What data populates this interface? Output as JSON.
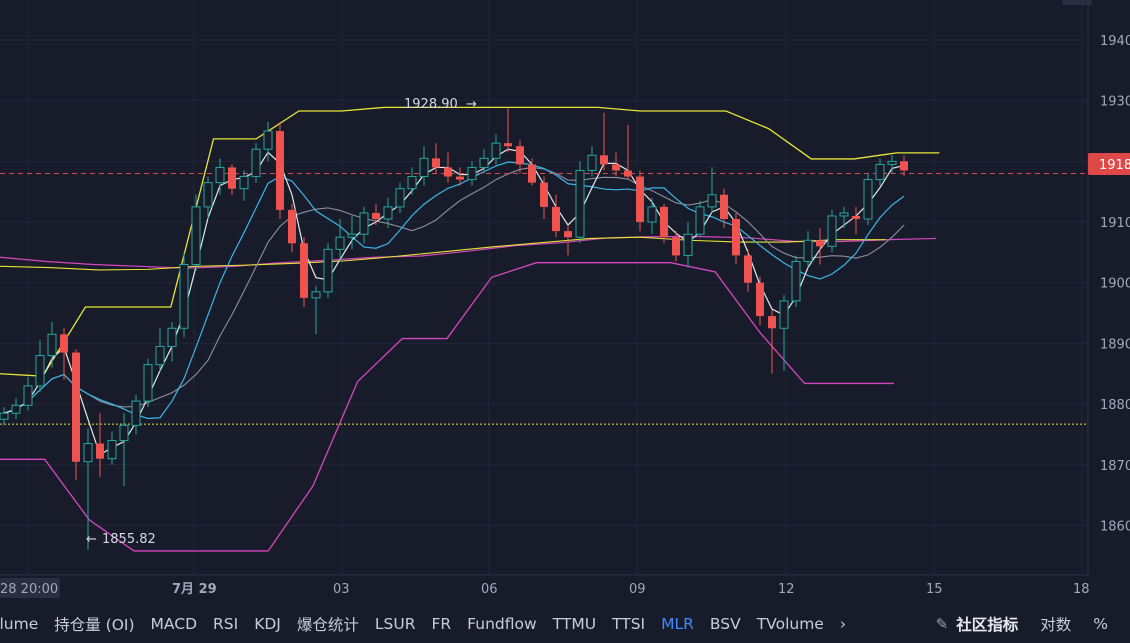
{
  "chart_data": {
    "type": "candlestick",
    "ylim": [
      1852,
      1943
    ],
    "y_ticks": [
      1860,
      1870,
      1880,
      1890,
      1900,
      1910,
      1920,
      1930,
      1940
    ],
    "x_tick_labels": [
      "28 20:00",
      "7月 29",
      "03",
      "06",
      "09",
      "12",
      "15",
      "18"
    ],
    "current_price_label": "1918",
    "annotations": {
      "high": "1928.90",
      "low": "1855.82"
    },
    "overlays": {
      "yellow_dotted_level": 1876.7,
      "upper_channel": [
        1885,
        1884.6,
        1896,
        1896,
        1896,
        1923.7,
        1923.7,
        1928.3,
        1928.3,
        1928.9,
        1928.9,
        1928.9,
        1928.9,
        1928.9,
        1928.9,
        1928.3,
        1928.3,
        1928.3,
        1925.4,
        1920.4,
        1920.4,
        1921.4,
        1921.4
      ],
      "lower_channel": [
        1870.9,
        1870.9,
        1860.9,
        1855.8,
        1855.8,
        1855.8,
        1855.8,
        1866.5,
        1883.7,
        1890.8,
        1890.8,
        1900.9,
        1903.3,
        1903.3,
        1903.3,
        1903.3,
        1901.8,
        1891.8,
        1883.4,
        1883.4,
        1883.4
      ],
      "cyan_ma": [
        1904.2,
        1903.5,
        1903.0,
        1902.7,
        1902.4,
        1902.7,
        1903.3,
        1903.7,
        1904.2,
        1904.4,
        1905.2,
        1906.1,
        1906.6,
        1907.4,
        1907.6,
        1907.6,
        1907.4,
        1906.8,
        1906.8,
        1907.1,
        1907.3
      ],
      "yellow_ma": [
        1902.7,
        1902.5,
        1902.1,
        1902.2,
        1902.7,
        1902.9,
        1903.2,
        1903.6,
        1904.3,
        1905.1,
        1905.9,
        1906.6,
        1907.3,
        1907.5,
        1907.0,
        1906.7,
        1906.7,
        1907.1,
        1907.1
      ]
    },
    "candles": [
      [
        1877.5,
        1879.5,
        1876.5,
        1878.5
      ],
      [
        1878.5,
        1881.0,
        1877.5,
        1879.8
      ],
      [
        1879.8,
        1884.5,
        1879.0,
        1883.0
      ],
      [
        1883.0,
        1890.5,
        1882.0,
        1888.0
      ],
      [
        1888.0,
        1893.5,
        1886.0,
        1891.5
      ],
      [
        1891.5,
        1892.5,
        1884.0,
        1888.5
      ],
      [
        1888.5,
        1889.0,
        1867.5,
        1870.5
      ],
      [
        1870.5,
        1876.0,
        1856.0,
        1873.5
      ],
      [
        1873.5,
        1878.5,
        1868.0,
        1871.0
      ],
      [
        1871.0,
        1875.5,
        1870.0,
        1874.0
      ],
      [
        1874.0,
        1878.5,
        1866.5,
        1876.5
      ],
      [
        1876.5,
        1881.5,
        1875.0,
        1880.5
      ],
      [
        1880.5,
        1887.5,
        1879.5,
        1886.5
      ],
      [
        1886.5,
        1892.5,
        1885.5,
        1889.5
      ],
      [
        1889.5,
        1893.5,
        1887.0,
        1892.5
      ],
      [
        1892.5,
        1905.0,
        1891.0,
        1903.0
      ],
      [
        1903.0,
        1914.5,
        1902.0,
        1912.5
      ],
      [
        1912.5,
        1917.5,
        1910.5,
        1916.5
      ],
      [
        1916.5,
        1920.5,
        1914.5,
        1919.0
      ],
      [
        1919.0,
        1919.5,
        1914.5,
        1915.5
      ],
      [
        1915.5,
        1918.5,
        1913.5,
        1917.5
      ],
      [
        1917.5,
        1923.0,
        1916.5,
        1922.0
      ],
      [
        1922.0,
        1926.5,
        1920.0,
        1925.0
      ],
      [
        1925.0,
        1926.5,
        1910.5,
        1912.0
      ],
      [
        1912.0,
        1913.0,
        1905.0,
        1906.5
      ],
      [
        1906.5,
        1907.5,
        1896.0,
        1897.5
      ],
      [
        1897.5,
        1899.5,
        1891.5,
        1898.5
      ],
      [
        1898.5,
        1906.5,
        1897.5,
        1905.5
      ],
      [
        1905.5,
        1910.5,
        1903.5,
        1907.5
      ],
      [
        1907.5,
        1911.0,
        1905.5,
        1908.0
      ],
      [
        1908.0,
        1912.5,
        1906.5,
        1911.5
      ],
      [
        1911.5,
        1913.0,
        1909.5,
        1910.5
      ],
      [
        1910.5,
        1914.0,
        1909.0,
        1912.5
      ],
      [
        1912.5,
        1916.5,
        1911.5,
        1915.5
      ],
      [
        1915.5,
        1919.0,
        1914.5,
        1917.5
      ],
      [
        1917.5,
        1922.5,
        1916.0,
        1920.5
      ],
      [
        1920.5,
        1923.0,
        1918.0,
        1919.0
      ],
      [
        1919.0,
        1921.5,
        1916.5,
        1917.5
      ],
      [
        1917.5,
        1919.0,
        1916.0,
        1917.0
      ],
      [
        1917.0,
        1920.0,
        1916.0,
        1919.0
      ],
      [
        1919.0,
        1922.0,
        1918.0,
        1920.5
      ],
      [
        1920.5,
        1924.5,
        1919.5,
        1923.0
      ],
      [
        1923.0,
        1928.9,
        1921.5,
        1922.5
      ],
      [
        1922.5,
        1923.5,
        1918.0,
        1919.5
      ],
      [
        1919.5,
        1920.5,
        1916.0,
        1916.5
      ],
      [
        1916.5,
        1917.5,
        1910.5,
        1912.5
      ],
      [
        1912.5,
        1914.5,
        1907.5,
        1908.5
      ],
      [
        1908.5,
        1909.5,
        1904.5,
        1907.5
      ],
      [
        1907.5,
        1920.0,
        1906.5,
        1918.5
      ],
      [
        1918.5,
        1922.5,
        1917.5,
        1921.0
      ],
      [
        1921.0,
        1928.0,
        1918.5,
        1919.5
      ],
      [
        1919.5,
        1921.5,
        1917.5,
        1918.5
      ],
      [
        1918.5,
        1926.0,
        1917.0,
        1917.5
      ],
      [
        1917.5,
        1918.5,
        1908.5,
        1910.0
      ],
      [
        1910.0,
        1914.0,
        1908.0,
        1912.5
      ],
      [
        1912.5,
        1913.0,
        1906.5,
        1907.5
      ],
      [
        1907.5,
        1908.5,
        1903.5,
        1904.5
      ],
      [
        1904.5,
        1910.0,
        1902.5,
        1908.0
      ],
      [
        1908.0,
        1913.5,
        1907.5,
        1912.5
      ],
      [
        1912.5,
        1919.0,
        1911.5,
        1914.5
      ],
      [
        1914.5,
        1915.5,
        1909.0,
        1910.5
      ],
      [
        1910.5,
        1911.5,
        1903.0,
        1904.5
      ],
      [
        1904.5,
        1905.5,
        1898.5,
        1900.0
      ],
      [
        1900.0,
        1901.0,
        1893.0,
        1894.5
      ],
      [
        1894.5,
        1895.5,
        1885.0,
        1892.5
      ],
      [
        1892.5,
        1898.0,
        1885.5,
        1897.0
      ],
      [
        1897.0,
        1904.5,
        1896.0,
        1903.5
      ],
      [
        1903.5,
        1908.5,
        1902.5,
        1907.0
      ],
      [
        1907.0,
        1909.0,
        1903.0,
        1906.0
      ],
      [
        1906.0,
        1912.0,
        1905.0,
        1911.0
      ],
      [
        1911.0,
        1912.5,
        1909.0,
        1911.5
      ],
      [
        1911.0,
        1912.5,
        1908.0,
        1910.5
      ],
      [
        1910.5,
        1918.0,
        1909.5,
        1917.0
      ],
      [
        1917.0,
        1920.5,
        1916.0,
        1919.5
      ],
      [
        1919.5,
        1921.0,
        1918.0,
        1920.0
      ],
      [
        1920.0,
        1921.0,
        1917.5,
        1918.5
      ]
    ]
  },
  "toolbar": {
    "tabs": [
      "olume",
      "持仓量 (OI)",
      "MACD",
      "RSI",
      "KDJ",
      "爆仓统计",
      "LSUR",
      "FR",
      "Fundflow",
      "TTMU",
      "TTSI",
      "MLR",
      "BSV",
      "TVolume"
    ],
    "active_tab": "MLR",
    "more": "›",
    "community": "社区指标",
    "log_scale": "对数",
    "percent": "%"
  },
  "colors": {
    "background": "#181b2a",
    "up": "#26a69a",
    "down": "#ef5350",
    "white_ma": "#e8e8e8",
    "cyan_ma": "#38b6e8",
    "upper_channel": "#e6e635",
    "lower_channel": "#d646c0",
    "grey_line": "#8c909f",
    "active_tab": "#3d8bff"
  }
}
